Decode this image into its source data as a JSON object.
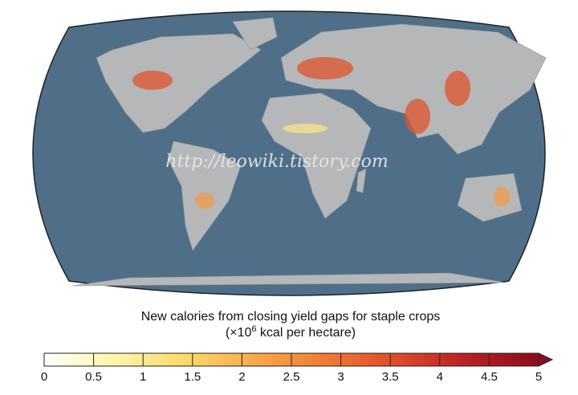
{
  "map": {
    "watermark": "http://leowiki.tistory.com",
    "title": "New calories from closing yield gaps for staple crops",
    "subtitle": {
      "before": "(×10",
      "superscript": "6",
      "after": " kcal per hectare)"
    },
    "colorbar": {
      "range": [
        0,
        5
      ],
      "ticks": [
        0,
        0.5,
        1,
        1.5,
        2,
        2.5,
        3,
        3.5,
        4,
        4.5,
        5
      ],
      "colors": [
        "#ffffff",
        "#fdf6a8",
        "#fcd96a",
        "#f9a848",
        "#f07a36",
        "#de4a2a",
        "#b81e24",
        "#8c0d1d"
      ],
      "extend": "max"
    }
  }
}
